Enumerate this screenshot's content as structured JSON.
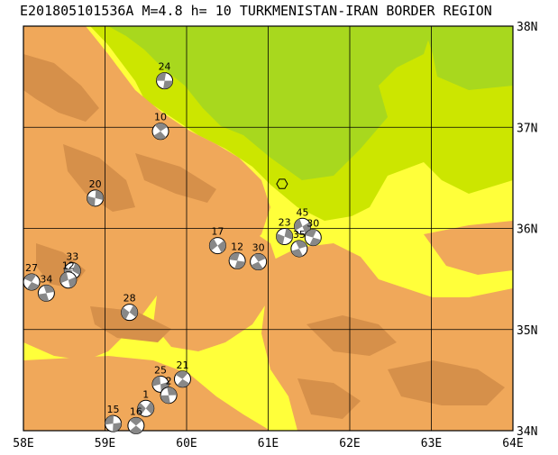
{
  "title": "E201805101536A M=4.8 h= 10 TURKMENISTAN-IRAN BORDER REGION",
  "colors": {
    "lowland": "#e8e800",
    "plain": "#ffff3a",
    "basin": "#cce600",
    "deep_basin": "#a8d81e",
    "mountain": "#f0a85a",
    "high_mountain": "#d6904a",
    "grid": "#000000"
  },
  "lon_ticks": [
    "58E",
    "59E",
    "60E",
    "61E",
    "62E",
    "63E",
    "64E"
  ],
  "lat_ticks": [
    "38N",
    "37N",
    "36N",
    "35N",
    "34N"
  ],
  "epicenter": {
    "icon": "hexagon-icon",
    "lon": 61.17,
    "lat": 36.44
  },
  "focal_mechanisms": [
    {
      "label": "24",
      "lon": 59.73,
      "lat": 37.46
    },
    {
      "label": "10",
      "lon": 59.68,
      "lat": 36.96
    },
    {
      "label": "20",
      "lon": 58.88,
      "lat": 36.3
    },
    {
      "label": "17",
      "lon": 60.38,
      "lat": 35.83
    },
    {
      "label": "12",
      "lon": 60.62,
      "lat": 35.68
    },
    {
      "label": "30",
      "lon": 60.88,
      "lat": 35.67
    },
    {
      "label": "23",
      "lon": 61.2,
      "lat": 35.92
    },
    {
      "label": "45",
      "lon": 61.42,
      "lat": 36.02
    },
    {
      "label": "30",
      "lon": 61.55,
      "lat": 35.91
    },
    {
      "label": "35",
      "lon": 61.38,
      "lat": 35.8
    },
    {
      "label": "33",
      "lon": 58.6,
      "lat": 35.58
    },
    {
      "label": "12",
      "lon": 58.55,
      "lat": 35.49
    },
    {
      "label": "27",
      "lon": 58.1,
      "lat": 35.47
    },
    {
      "label": "34",
      "lon": 58.28,
      "lat": 35.36
    },
    {
      "label": "28",
      "lon": 59.3,
      "lat": 35.17
    },
    {
      "label": "25",
      "lon": 59.68,
      "lat": 34.46
    },
    {
      "label": "21",
      "lon": 59.95,
      "lat": 34.51
    },
    {
      "label": "2",
      "lon": 59.78,
      "lat": 34.35
    },
    {
      "label": "1",
      "lon": 59.5,
      "lat": 34.22
    },
    {
      "label": "15",
      "lon": 59.1,
      "lat": 34.07
    },
    {
      "label": "16",
      "lon": 59.38,
      "lat": 34.05
    }
  ]
}
